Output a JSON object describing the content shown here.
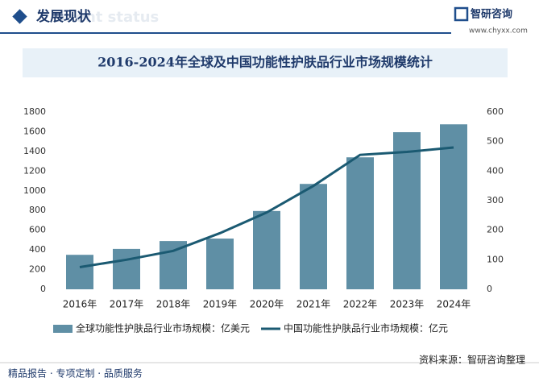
{
  "header": {
    "title": "发展现状",
    "watermark": "ment status",
    "brand": "智研咨询",
    "url": "www.chyxx.com"
  },
  "chart_data": {
    "type": "bar",
    "title": "2016-2024年全球及中国功能性护肤品行业市场规模统计",
    "categories": [
      "2016年",
      "2017年",
      "2018年",
      "2019年",
      "2020年",
      "2021年",
      "2022年",
      "2023年",
      "2024年"
    ],
    "series": [
      {
        "name": "全球功能性护肤品行业市场规模：亿美元",
        "type": "bar",
        "color": "#5f8fa5",
        "values": [
          350,
          410,
          490,
          515,
          795,
          1070,
          1340,
          1595,
          1675
        ]
      },
      {
        "name": "中国功能性护肤品行业市场规模：亿元",
        "type": "line",
        "axis": "y2",
        "color": "#1b5a72",
        "values": [
          75,
          100,
          130,
          190,
          260,
          350,
          455,
          465,
          480
        ]
      }
    ],
    "ylim": [
      0,
      1800
    ],
    "yticks": [
      0,
      200,
      400,
      600,
      800,
      1000,
      1200,
      1400,
      1600,
      1800
    ],
    "y2lim": [
      0,
      600
    ],
    "y2ticks": [
      0,
      100,
      200,
      300,
      400,
      500,
      600
    ],
    "grid": false,
    "legend": "bottom"
  },
  "footer": {
    "slogan": "精品报告 · 专项定制 · 品质服务",
    "source": "资料来源：智研咨询整理"
  }
}
